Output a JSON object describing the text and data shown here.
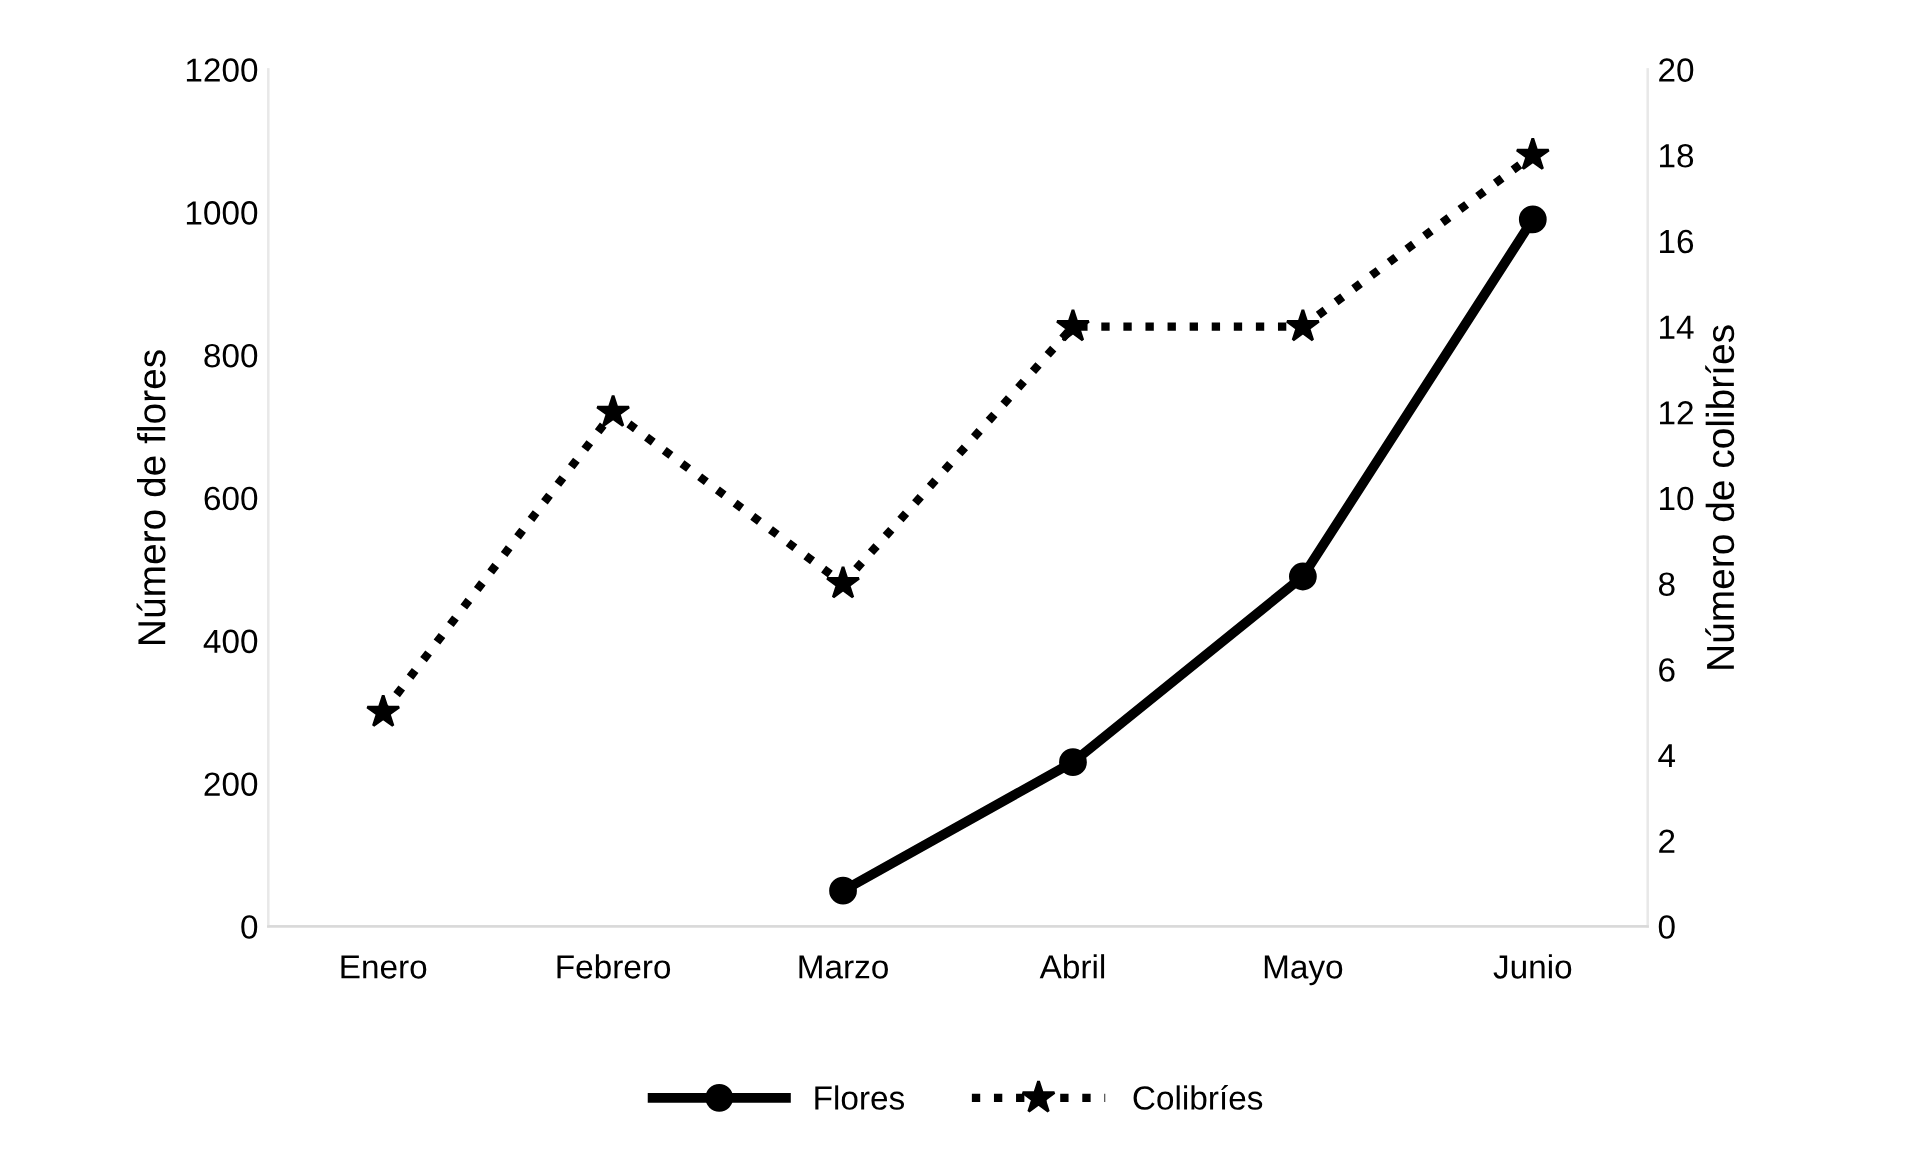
{
  "chart_data": {
    "type": "line",
    "categories": [
      "Enero",
      "Febrero",
      "Marzo",
      "Abril",
      "Mayo",
      "Junio"
    ],
    "ylabel": "Número de flores",
    "y2label": "Número de colibríes",
    "ylim": [
      0,
      1200
    ],
    "yticks": [
      0,
      200,
      400,
      600,
      800,
      1000,
      1200
    ],
    "y2lim": [
      0,
      20
    ],
    "y2ticks": [
      0,
      2,
      4,
      6,
      8,
      10,
      12,
      14,
      16,
      18,
      20
    ],
    "grid": false,
    "legend": "bottom",
    "series": [
      {
        "name": "Flores",
        "color": "#000000",
        "marker": "circle",
        "line_style": "solid",
        "values": [
          null,
          null,
          50,
          230,
          490,
          990
        ]
      },
      {
        "name": "Colibríes",
        "color": "#000000",
        "marker": "star",
        "line_style": "dotted",
        "axis": "y2",
        "values": [
          5,
          12,
          8,
          14,
          14,
          18
        ]
      }
    ]
  }
}
